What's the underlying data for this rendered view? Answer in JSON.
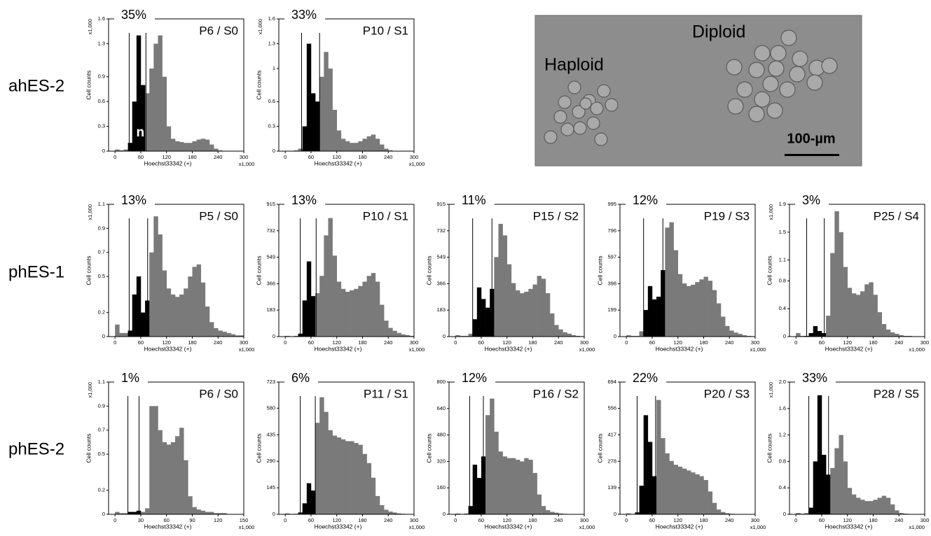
{
  "row_labels": [
    "ahES-2",
    "phES-1",
    "phES-2"
  ],
  "image": {
    "haploid": "Haploid",
    "diploid": "Diploid",
    "scale_bar": "100-µm"
  },
  "chart_data": [
    {
      "type": "histogram",
      "title": "P6 / S0",
      "annotation": "35%",
      "gate_label": "n",
      "xlabel": "Hoechst33342 (+)",
      "ylabel": "Cell counts",
      "x_multiplier": "x1,000",
      "y_multiplier": "x1,000",
      "bins": [
        0,
        10,
        20,
        30,
        40,
        50,
        60,
        70,
        80,
        90,
        100,
        110,
        120,
        130,
        140,
        150,
        160,
        170,
        180,
        190,
        200,
        210,
        220,
        230,
        240,
        250,
        260,
        270,
        280,
        290,
        300
      ],
      "counts": [
        0.02,
        0.01,
        0.02,
        0.1,
        0.6,
        1.4,
        0.8,
        0.7,
        1.0,
        1.3,
        1.4,
        0.9,
        0.3,
        0.15,
        0.12,
        0.11,
        0.1,
        0.1,
        0.12,
        0.14,
        0.15,
        0.14,
        0.08,
        0.03,
        0.01,
        0,
        0,
        0,
        0,
        0
      ],
      "gate": [
        33,
        72
      ],
      "color": "#7a7a7a",
      "gate_color": "#000000",
      "xlim": [
        -15,
        300
      ],
      "xticks": [
        0,
        60,
        120,
        180,
        240,
        300
      ],
      "ylim": [
        0,
        1.6
      ],
      "yticks": [
        0,
        0.3,
        0.6,
        0.9,
        1.3,
        1.6
      ]
    },
    {
      "type": "histogram",
      "title": "P10 / S1",
      "annotation": "33%",
      "xlabel": "Hoechst33342 (+)",
      "ylabel": "Cell counts",
      "x_multiplier": "x1,000",
      "y_multiplier": "x1,000",
      "bins": [
        0,
        10,
        20,
        30,
        40,
        50,
        60,
        70,
        80,
        90,
        100,
        110,
        120,
        130,
        140,
        150,
        160,
        170,
        180,
        190,
        200,
        210,
        220,
        230,
        240,
        250,
        260,
        270,
        280,
        290,
        300
      ],
      "counts": [
        0,
        0,
        0.01,
        0.03,
        0.3,
        1.3,
        0.7,
        0.6,
        0.9,
        1.2,
        1.0,
        0.5,
        0.25,
        0.15,
        0.12,
        0.1,
        0.1,
        0.12,
        0.15,
        0.18,
        0.2,
        0.15,
        0.08,
        0.03,
        0.01,
        0,
        0,
        0,
        0,
        0
      ],
      "gate": [
        38,
        80
      ],
      "color": "#7a7a7a",
      "gate_color": "#000000",
      "xlim": [
        -15,
        300
      ],
      "xticks": [
        0,
        60,
        120,
        180,
        240,
        300
      ],
      "ylim": [
        0,
        1.6
      ],
      "yticks": [
        0,
        0.3,
        0.6,
        1.0,
        1.3,
        1.6
      ]
    },
    {
      "type": "histogram",
      "title": "P5 / S0",
      "annotation": "13%",
      "xlabel": "Hoechst33342 (+)",
      "ylabel": "Cell counts",
      "x_multiplier": "x1,000",
      "y_multiplier": "x1,000",
      "bins": [
        0,
        10,
        20,
        30,
        40,
        50,
        60,
        70,
        80,
        90,
        100,
        110,
        120,
        130,
        140,
        150,
        160,
        170,
        180,
        190,
        200,
        210,
        220,
        230,
        240,
        250,
        260,
        270,
        280,
        290,
        300
      ],
      "counts": [
        0.1,
        0.03,
        0.03,
        0.05,
        0.35,
        0.5,
        0.2,
        0.3,
        0.7,
        1.0,
        0.85,
        0.55,
        0.4,
        0.35,
        0.33,
        0.35,
        0.4,
        0.5,
        0.58,
        0.6,
        0.45,
        0.25,
        0.12,
        0.07,
        0.05,
        0.04,
        0.03,
        0.02,
        0.01,
        0.01
      ],
      "gate": [
        33,
        76
      ],
      "color": "#7a7a7a",
      "gate_color": "#000000",
      "xlim": [
        -15,
        300
      ],
      "xticks": [
        0,
        60,
        120,
        180,
        240,
        300
      ],
      "ylim": [
        0,
        1.1
      ],
      "yticks": [
        0,
        0.2,
        0.5,
        0.7,
        0.9,
        1.1
      ]
    },
    {
      "type": "histogram",
      "title": "P10 / S1",
      "annotation": "13%",
      "xlabel": "Hoechst33342 (+)",
      "ylabel": "Cell counts",
      "x_multiplier": "x1,000",
      "bins": [
        0,
        10,
        20,
        30,
        40,
        50,
        60,
        70,
        80,
        90,
        100,
        110,
        120,
        130,
        140,
        150,
        160,
        170,
        180,
        190,
        200,
        210,
        220,
        230,
        240,
        250,
        260,
        270,
        280,
        290,
        300
      ],
      "counts": [
        5,
        2,
        5,
        20,
        250,
        520,
        280,
        300,
        420,
        700,
        820,
        560,
        380,
        330,
        310,
        320,
        330,
        350,
        380,
        420,
        440,
        380,
        220,
        110,
        60,
        40,
        25,
        15,
        10,
        5
      ],
      "gate": [
        35,
        72
      ],
      "color": "#7a7a7a",
      "gate_color": "#000000",
      "xlim": [
        -15,
        300
      ],
      "xticks": [
        0,
        60,
        120,
        180,
        240,
        300
      ],
      "ylim": [
        0,
        915
      ],
      "yticks": [
        0,
        183,
        366,
        549,
        732,
        915
      ]
    },
    {
      "type": "histogram",
      "title": "P15 / S2",
      "annotation": "11%",
      "xlabel": "Hoechst33342 (+)",
      "ylabel": "Cell counts",
      "x_multiplier": "x1,000",
      "bins": [
        0,
        10,
        20,
        30,
        40,
        50,
        60,
        70,
        80,
        90,
        100,
        110,
        120,
        130,
        140,
        150,
        160,
        170,
        180,
        190,
        200,
        210,
        220,
        230,
        240,
        250,
        260,
        270,
        280,
        290,
        300
      ],
      "counts": [
        10,
        5,
        5,
        20,
        120,
        340,
        260,
        200,
        330,
        550,
        780,
        700,
        500,
        370,
        320,
        300,
        310,
        330,
        360,
        420,
        400,
        300,
        160,
        80,
        50,
        30,
        20,
        10,
        5,
        3
      ],
      "gate": [
        40,
        85
      ],
      "color": "#7a7a7a",
      "gate_color": "#000000",
      "xlim": [
        -15,
        300
      ],
      "xticks": [
        0,
        60,
        120,
        180,
        240,
        300
      ],
      "ylim": [
        0,
        915
      ],
      "yticks": [
        0,
        183,
        366,
        549,
        732,
        915
      ]
    },
    {
      "type": "histogram",
      "title": "P19 / S3",
      "annotation": "12%",
      "xlabel": "Hoechst33342 (+)",
      "ylabel": "Cell counts",
      "x_multiplier": "x1,000",
      "bins": [
        0,
        10,
        20,
        30,
        40,
        50,
        60,
        70,
        80,
        90,
        100,
        110,
        120,
        130,
        140,
        150,
        160,
        170,
        180,
        190,
        200,
        210,
        220,
        230,
        240,
        250,
        260,
        270,
        280,
        290,
        300
      ],
      "counts": [
        10,
        5,
        5,
        40,
        200,
        380,
        280,
        300,
        500,
        820,
        860,
        650,
        470,
        400,
        380,
        390,
        410,
        430,
        450,
        420,
        350,
        250,
        150,
        80,
        45,
        30,
        20,
        10,
        5,
        3
      ],
      "gate": [
        40,
        85
      ],
      "color": "#7a7a7a",
      "gate_color": "#000000",
      "xlim": [
        -15,
        300
      ],
      "xticks": [
        0,
        60,
        120,
        180,
        240,
        300
      ],
      "ylim": [
        0,
        995
      ],
      "yticks": [
        0,
        199,
        398,
        597,
        796,
        995
      ]
    },
    {
      "type": "histogram",
      "title": "P25 / S4",
      "annotation": "3%",
      "xlabel": "Hoechst33342 (+)",
      "ylabel": "Cell counts",
      "x_multiplier": "x1,000",
      "y_multiplier": "x1,000",
      "bins": [
        0,
        10,
        20,
        30,
        40,
        50,
        60,
        70,
        80,
        90,
        100,
        110,
        120,
        130,
        140,
        150,
        160,
        170,
        180,
        190,
        200,
        210,
        220,
        230,
        240,
        250,
        260,
        270,
        280,
        290,
        300
      ],
      "counts": [
        0.05,
        0.01,
        0.01,
        0.05,
        0.15,
        0.08,
        0.05,
        0.3,
        1.2,
        1.8,
        1.5,
        1.0,
        0.7,
        0.62,
        0.6,
        0.65,
        0.75,
        0.78,
        0.6,
        0.35,
        0.18,
        0.1,
        0.06,
        0.04,
        0.02,
        0.01,
        0.01,
        0,
        0,
        0
      ],
      "gate": [
        25,
        66
      ],
      "color": "#7a7a7a",
      "gate_color": "#000000",
      "xlim": [
        -15,
        300
      ],
      "xticks": [
        0,
        60,
        120,
        180,
        240,
        300
      ],
      "ylim": [
        0,
        1.9
      ],
      "yticks": [
        0,
        0.4,
        0.8,
        1.1,
        1.5,
        1.9
      ]
    },
    {
      "type": "histogram",
      "title": "P6 / S0",
      "annotation": "1%",
      "xlabel": "Hoechst33342 (+)",
      "ylabel": "Cell counts",
      "x_multiplier": "x1,000",
      "y_multiplier": "x1,000",
      "bins": [
        0,
        5,
        10,
        15,
        20,
        25,
        30,
        35,
        40,
        45,
        50,
        55,
        60,
        65,
        70,
        75,
        80,
        85,
        90,
        95,
        100,
        105,
        110,
        115,
        120,
        125,
        130,
        135,
        140,
        145,
        150
      ],
      "counts": [
        0.02,
        0.01,
        0.01,
        0.02,
        0.02,
        0.03,
        0.02,
        0.05,
        0.9,
        0.9,
        0.7,
        0.6,
        0.58,
        0.6,
        0.65,
        0.72,
        0.45,
        0.15,
        0.06,
        0.04,
        0.03,
        0.02,
        0.02,
        0.01,
        0.01,
        0.01,
        0,
        0,
        0,
        0
      ],
      "gate": [
        15,
        28
      ],
      "color": "#7a7a7a",
      "gate_color": "#000000",
      "xlim": [
        -7.5,
        150
      ],
      "xticks": [
        0,
        30,
        60,
        90,
        120,
        150
      ],
      "ylim": [
        0,
        1.1
      ],
      "yticks": [
        0,
        0.2,
        0.5,
        0.7,
        0.9,
        1.1
      ]
    },
    {
      "type": "histogram",
      "title": "P11 / S1",
      "annotation": "6%",
      "xlabel": "Hoechst33342 (+)",
      "ylabel": "Cell counts",
      "x_multiplier": "x1,000",
      "bins": [
        0,
        10,
        20,
        30,
        40,
        50,
        60,
        70,
        80,
        90,
        100,
        110,
        120,
        130,
        140,
        150,
        160,
        170,
        180,
        190,
        200,
        210,
        220,
        230,
        240,
        250,
        260,
        270,
        280,
        290,
        300
      ],
      "counts": [
        5,
        2,
        3,
        10,
        60,
        170,
        130,
        500,
        640,
        560,
        460,
        430,
        420,
        410,
        400,
        400,
        390,
        380,
        330,
        280,
        200,
        100,
        50,
        25,
        15,
        10,
        5,
        3,
        2,
        1
      ],
      "gate": [
        35,
        70
      ],
      "color": "#7a7a7a",
      "gate_color": "#000000",
      "xlim": [
        -15,
        300
      ],
      "xticks": [
        0,
        60,
        120,
        180,
        240,
        300
      ],
      "ylim": [
        0,
        723
      ],
      "yticks": [
        0,
        145,
        290,
        435,
        580,
        723
      ]
    },
    {
      "type": "histogram",
      "title": "P16 / S2",
      "annotation": "12%",
      "xlabel": "Hoechst33342 (+)",
      "ylabel": "Cell counts",
      "x_multiplier": "x1,000",
      "bins": [
        0,
        10,
        20,
        30,
        40,
        50,
        60,
        70,
        80,
        90,
        100,
        110,
        120,
        130,
        140,
        150,
        160,
        170,
        180,
        190,
        200,
        210,
        220,
        230,
        240,
        250,
        260,
        270,
        280,
        290,
        300
      ],
      "counts": [
        5,
        2,
        5,
        50,
        300,
        220,
        350,
        600,
        700,
        500,
        380,
        350,
        340,
        340,
        330,
        320,
        340,
        330,
        250,
        120,
        50,
        25,
        15,
        10,
        5,
        3,
        2,
        1,
        1,
        0
      ],
      "gate": [
        33,
        65
      ],
      "color": "#7a7a7a",
      "gate_color": "#000000",
      "xlim": [
        -15,
        300
      ],
      "xticks": [
        0,
        60,
        120,
        180,
        240,
        300
      ],
      "ylim": [
        0,
        800
      ],
      "yticks": [
        0,
        160,
        320,
        480,
        640,
        800
      ]
    },
    {
      "type": "histogram",
      "title": "P20 / S3",
      "annotation": "22%",
      "xlabel": "Hoechst33342 (+)",
      "ylabel": "Cell counts",
      "x_multiplier": "x1,000",
      "bins": [
        0,
        10,
        20,
        30,
        40,
        50,
        60,
        70,
        80,
        90,
        100,
        110,
        120,
        130,
        140,
        150,
        160,
        170,
        180,
        190,
        200,
        210,
        220,
        230,
        240,
        250,
        260,
        270,
        280,
        290,
        300
      ],
      "counts": [
        5,
        2,
        10,
        150,
        520,
        380,
        200,
        600,
        400,
        320,
        280,
        260,
        250,
        240,
        230,
        220,
        210,
        200,
        180,
        120,
        60,
        25,
        12,
        6,
        3,
        2,
        1,
        0,
        0,
        0
      ],
      "gate": [
        25,
        68
      ],
      "color": "#7a7a7a",
      "gate_color": "#000000",
      "xlim": [
        -15,
        300
      ],
      "xticks": [
        0,
        60,
        120,
        180,
        240,
        300
      ],
      "ylim": [
        0,
        694
      ],
      "yticks": [
        0,
        139,
        278,
        417,
        556,
        694
      ]
    },
    {
      "type": "histogram",
      "title": "P28 / S5",
      "annotation": "33%",
      "xlabel": "Hoechst33342 (+)",
      "ylabel": "Cell counts",
      "x_multiplier": "x1,000",
      "y_multiplier": "x1,000",
      "bins": [
        0,
        10,
        20,
        30,
        40,
        50,
        60,
        70,
        80,
        90,
        100,
        110,
        120,
        130,
        140,
        150,
        160,
        170,
        180,
        190,
        200,
        210,
        220,
        230,
        240,
        250,
        260,
        270,
        280,
        290,
        300
      ],
      "counts": [
        0.02,
        0.01,
        0.02,
        0.1,
        0.8,
        1.8,
        0.9,
        0.6,
        0.7,
        1.0,
        1.2,
        0.8,
        0.4,
        0.3,
        0.25,
        0.22,
        0.2,
        0.2,
        0.22,
        0.25,
        0.28,
        0.25,
        0.15,
        0.06,
        0.02,
        0.01,
        0,
        0,
        0,
        0
      ],
      "gate": [
        30,
        76
      ],
      "color": "#7a7a7a",
      "gate_color": "#000000",
      "xlim": [
        -15,
        300
      ],
      "xticks": [
        0,
        60,
        120,
        180,
        240,
        300
      ],
      "ylim": [
        0,
        2
      ],
      "yticks": [
        0,
        0.4,
        0.8,
        1.2,
        1.6,
        {
          "value": 2,
          "label": "2.0"
        }
      ]
    }
  ]
}
